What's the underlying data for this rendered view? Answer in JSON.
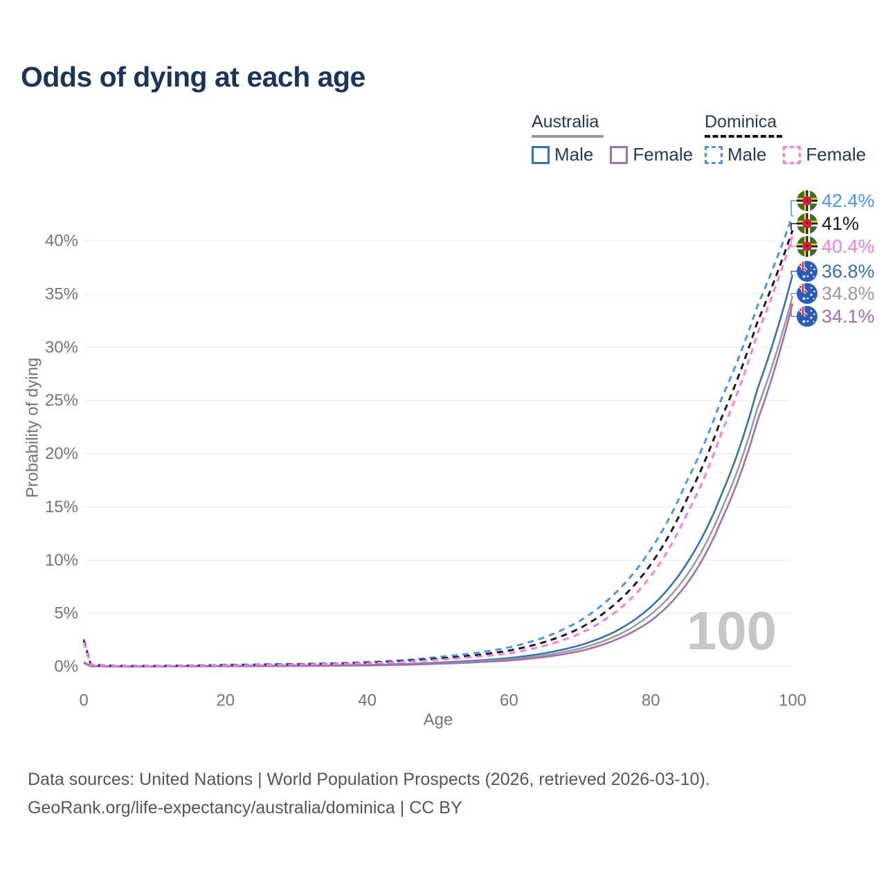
{
  "title": "Odds of dying at each age",
  "legend": {
    "groups": [
      {
        "country": "Australia",
        "line_style": "solid",
        "underline_color": "#9a9a9a",
        "items": [
          {
            "label": "Male",
            "color": "#3470b2"
          },
          {
            "label": "Female",
            "color": "#a06fae"
          }
        ]
      },
      {
        "country": "Dominica",
        "line_style": "dashed",
        "underline_color": "#141414",
        "items": [
          {
            "label": "Male",
            "color": "#4e94ec"
          },
          {
            "label": "Female",
            "color": "#f87be0"
          }
        ]
      }
    ]
  },
  "chart_data": {
    "type": "line",
    "title": "Odds of dying at each age",
    "xlabel": "Age",
    "ylabel": "Probability of dying",
    "xlim": [
      0,
      100
    ],
    "ylim": [
      0,
      44
    ],
    "grid": "horizontal",
    "watermark": "100",
    "xtick_labels": [
      "0",
      "20",
      "40",
      "60",
      "80",
      "100"
    ],
    "ytick_labels": [
      "0%",
      "5%",
      "10%",
      "15%",
      "20%",
      "25%",
      "30%",
      "35%",
      "40%"
    ],
    "units": "percent probability of dying at each age",
    "series": [
      {
        "name": "Australia — Male",
        "country": "Australia",
        "sex": "Male",
        "color": "#3470b2",
        "dashed": false,
        "end_label": "36.8%",
        "end_value": 36.8,
        "points": [
          [
            0,
            0.42
          ],
          [
            1,
            0.03
          ],
          [
            5,
            0.012
          ],
          [
            10,
            0.012
          ],
          [
            15,
            0.03
          ],
          [
            20,
            0.06
          ],
          [
            25,
            0.08
          ],
          [
            30,
            0.09
          ],
          [
            35,
            0.11
          ],
          [
            40,
            0.16
          ],
          [
            45,
            0.24
          ],
          [
            50,
            0.37
          ],
          [
            55,
            0.55
          ],
          [
            60,
            0.8
          ],
          [
            65,
            1.25
          ],
          [
            70,
            2.0
          ],
          [
            75,
            3.3
          ],
          [
            80,
            5.6
          ],
          [
            85,
            9.6
          ],
          [
            90,
            16.2
          ],
          [
            95,
            26.0
          ],
          [
            100,
            36.8
          ]
        ]
      },
      {
        "name": "Australia — Both sexes",
        "country": "Australia",
        "sex": "Both",
        "color": "#9b9b9b",
        "dashed": false,
        "end_label": "34.8%",
        "end_value": 34.8,
        "points": [
          [
            0,
            0.38
          ],
          [
            1,
            0.027
          ],
          [
            5,
            0.01
          ],
          [
            10,
            0.01
          ],
          [
            15,
            0.025
          ],
          [
            20,
            0.045
          ],
          [
            25,
            0.06
          ],
          [
            30,
            0.075
          ],
          [
            35,
            0.095
          ],
          [
            40,
            0.14
          ],
          [
            45,
            0.2
          ],
          [
            50,
            0.31
          ],
          [
            55,
            0.47
          ],
          [
            60,
            0.68
          ],
          [
            65,
            1.05
          ],
          [
            70,
            1.7
          ],
          [
            75,
            2.85
          ],
          [
            80,
            4.9
          ],
          [
            85,
            8.5
          ],
          [
            90,
            14.8
          ],
          [
            95,
            24.2
          ],
          [
            100,
            34.8
          ]
        ]
      },
      {
        "name": "Australia — Female",
        "country": "Australia",
        "sex": "Female",
        "color": "#a06fae",
        "dashed": false,
        "end_label": "34.1%",
        "end_value": 34.1,
        "points": [
          [
            0,
            0.34
          ],
          [
            1,
            0.024
          ],
          [
            5,
            0.009
          ],
          [
            10,
            0.009
          ],
          [
            15,
            0.02
          ],
          [
            20,
            0.03
          ],
          [
            25,
            0.04
          ],
          [
            30,
            0.055
          ],
          [
            35,
            0.075
          ],
          [
            40,
            0.11
          ],
          [
            45,
            0.17
          ],
          [
            50,
            0.26
          ],
          [
            55,
            0.39
          ],
          [
            60,
            0.57
          ],
          [
            65,
            0.9
          ],
          [
            70,
            1.45
          ],
          [
            75,
            2.5
          ],
          [
            80,
            4.3
          ],
          [
            85,
            7.7
          ],
          [
            90,
            13.8
          ],
          [
            95,
            23.0
          ],
          [
            100,
            34.1
          ]
        ]
      },
      {
        "name": "Dominica — Male",
        "country": "Dominica",
        "sex": "Male",
        "color": "#4e94ec",
        "dashed": true,
        "end_label": "42.4%",
        "end_value": 42.4,
        "points": [
          [
            0,
            2.6
          ],
          [
            1,
            0.18
          ],
          [
            5,
            0.07
          ],
          [
            10,
            0.07
          ],
          [
            15,
            0.1
          ],
          [
            20,
            0.16
          ],
          [
            25,
            0.2
          ],
          [
            30,
            0.25
          ],
          [
            35,
            0.3
          ],
          [
            40,
            0.42
          ],
          [
            45,
            0.6
          ],
          [
            50,
            0.9
          ],
          [
            55,
            1.25
          ],
          [
            60,
            1.8
          ],
          [
            65,
            2.75
          ],
          [
            70,
            4.3
          ],
          [
            75,
            6.9
          ],
          [
            80,
            11.0
          ],
          [
            85,
            17.3
          ],
          [
            90,
            25.2
          ],
          [
            95,
            33.8
          ],
          [
            100,
            42.4
          ]
        ]
      },
      {
        "name": "Dominica — Both sexes",
        "country": "Dominica",
        "sex": "Both",
        "color": "#1a1a1a",
        "dashed": true,
        "end_label": "41%",
        "end_value": 41.0,
        "points": [
          [
            0,
            2.45
          ],
          [
            1,
            0.16
          ],
          [
            5,
            0.06
          ],
          [
            10,
            0.06
          ],
          [
            15,
            0.09
          ],
          [
            20,
            0.14
          ],
          [
            25,
            0.18
          ],
          [
            30,
            0.22
          ],
          [
            35,
            0.27
          ],
          [
            40,
            0.37
          ],
          [
            45,
            0.52
          ],
          [
            50,
            0.75
          ],
          [
            55,
            1.05
          ],
          [
            60,
            1.5
          ],
          [
            65,
            2.3
          ],
          [
            70,
            3.6
          ],
          [
            75,
            5.9
          ],
          [
            80,
            9.6
          ],
          [
            85,
            15.6
          ],
          [
            90,
            23.4
          ],
          [
            95,
            32.3
          ],
          [
            100,
            41.0
          ]
        ]
      },
      {
        "name": "Dominica — Female",
        "country": "Dominica",
        "sex": "Female",
        "color": "#f87be0",
        "dashed": true,
        "end_label": "40.4%",
        "end_value": 40.4,
        "points": [
          [
            0,
            2.3
          ],
          [
            1,
            0.14
          ],
          [
            5,
            0.05
          ],
          [
            10,
            0.05
          ],
          [
            15,
            0.08
          ],
          [
            20,
            0.12
          ],
          [
            25,
            0.15
          ],
          [
            30,
            0.19
          ],
          [
            35,
            0.24
          ],
          [
            40,
            0.32
          ],
          [
            45,
            0.45
          ],
          [
            50,
            0.64
          ],
          [
            55,
            0.9
          ],
          [
            60,
            1.25
          ],
          [
            65,
            1.95
          ],
          [
            70,
            3.1
          ],
          [
            75,
            5.1
          ],
          [
            80,
            8.5
          ],
          [
            85,
            14.2
          ],
          [
            90,
            22.0
          ],
          [
            95,
            31.2
          ],
          [
            100,
            40.4
          ]
        ]
      }
    ]
  },
  "footer": {
    "line1": "Data sources: United Nations | World Population Prospects (2026, retrieved 2026-03-10).",
    "line2": "GeoRank.org/life-expectancy/australia/dominica | CC BY"
  },
  "colors": {
    "title_text": "#1b3457",
    "legend_text": "#213a57",
    "tick_text": "#70757d",
    "gridline": "#e9e9e9",
    "watermark": "#c6c6c6",
    "footer_text": "#4f565f"
  }
}
